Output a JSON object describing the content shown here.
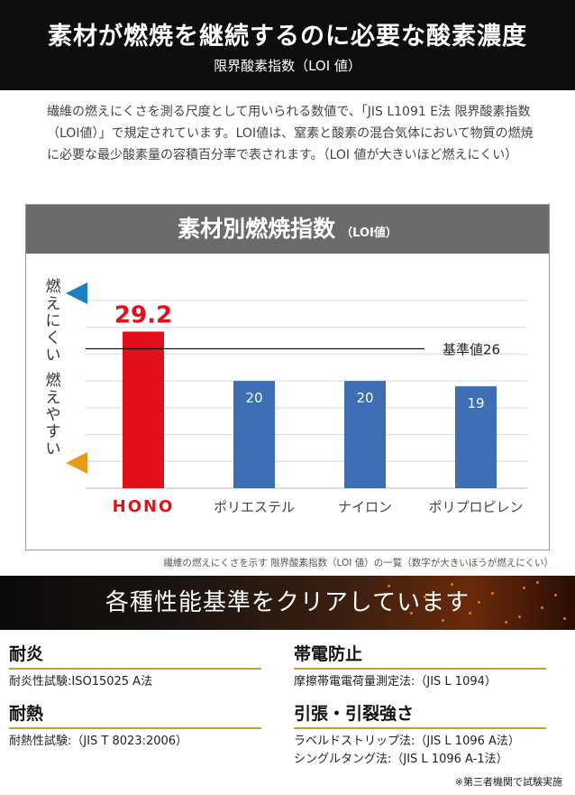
{
  "header": {
    "title": "素材が燃焼を継続するのに必要な酸素濃度",
    "subtitle": "限界酸素指数（LOI 値）"
  },
  "intro": {
    "text": "繊維の燃えにくさを測る尺度として用いられる数値で、「JIS L1091 E法 限界酸素指数（LOI値）」で規定されています。LOI値は、窒素と酸素の混合気体において物質の燃焼に必要な最少酸素量の容積百分率で表されます。（LOI 値が大きいほど燃えにくい）"
  },
  "chart_head": {
    "title": "素材別燃焼指数",
    "sub": "（LOI値）"
  },
  "chart_data": {
    "type": "bar",
    "categories": [
      "HONO",
      "ポリエステル",
      "ナイロン",
      "ポリプロピレン"
    ],
    "values": [
      29.2,
      20,
      20,
      19
    ],
    "value_labels": [
      "29.2",
      "20",
      "20",
      "19"
    ],
    "colors": [
      "#e3101c",
      "#3e6fb5",
      "#3e6fb5",
      "#3e6fb5"
    ],
    "ylim": [
      0,
      35
    ],
    "grid": true,
    "reference": {
      "value": 26,
      "label": "基準値26"
    },
    "axis_up_label": "燃えにくい",
    "axis_down_label": "燃えやすい"
  },
  "caption": "繊維の燃えにくさを示す 限界酸素指数（LOI 値）の一覧（数字が大きいほうが燃えにくい）",
  "banner": {
    "title": "各種性能基準をクリアしています"
  },
  "performance": [
    {
      "heading": "耐炎",
      "lines": [
        "耐炎性試験:ISO15025 A法"
      ]
    },
    {
      "heading": "帯電防止",
      "lines": [
        "摩擦帯電電荷量測定法:（JIS L 1094）"
      ]
    },
    {
      "heading": "耐熱",
      "lines": [
        "耐熱性試験:（JIS T 8023:2006）"
      ]
    },
    {
      "heading": "引張・引裂強さ",
      "lines": [
        "ラベルドストリップ法:（JIS L 1096 A法）",
        "シングルタング法:（JIS L 1096 A-1法）"
      ]
    }
  ],
  "note": "※第三者機関で試験実施"
}
